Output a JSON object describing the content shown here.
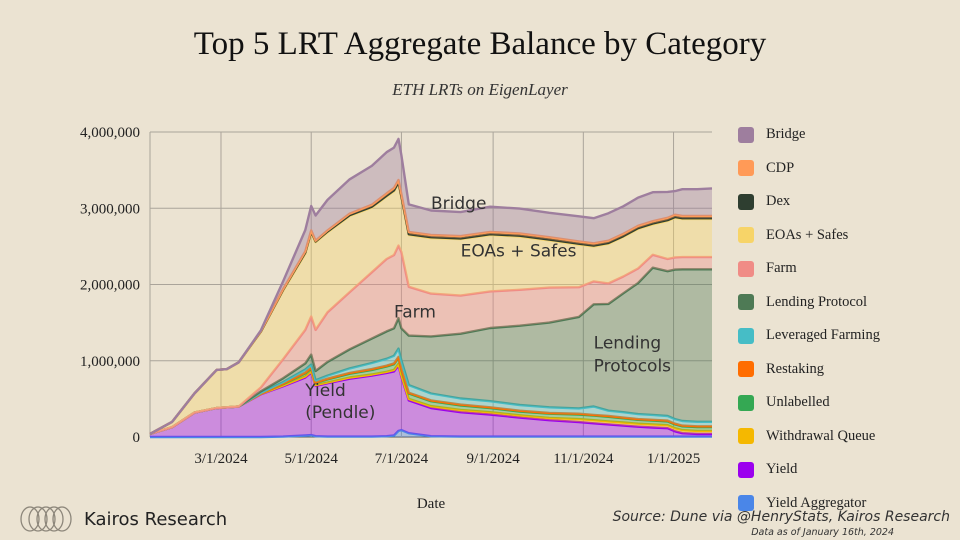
{
  "chart_data": {
    "type": "area",
    "stacked": true,
    "title": "Top 5 LRT Aggregate Balance by Category",
    "subtitle": "ETH LRTs on EigenLayer",
    "xlabel": "Date",
    "ylabel": "",
    "ylim": [
      0,
      4000000
    ],
    "yticks": [
      0,
      1000000,
      2000000,
      3000000,
      4000000
    ],
    "ytick_labels": [
      "0",
      "1,000,000",
      "2,000,000",
      "3,000,000",
      "4,000,000"
    ],
    "xtick_labels": [
      "3/1/2024",
      "5/1/2024",
      "7/1/2024",
      "9/1/2024",
      "11/1/2024",
      "1/1/2025"
    ],
    "xtick_days": [
      48,
      109,
      170,
      232,
      293,
      354
    ],
    "x_days": [
      0,
      15,
      30,
      45,
      52,
      60,
      75,
      90,
      105,
      109,
      112,
      120,
      135,
      150,
      160,
      165,
      168,
      170,
      175,
      190,
      210,
      230,
      250,
      270,
      290,
      300,
      310,
      320,
      330,
      340,
      350,
      355,
      360,
      370,
      380
    ],
    "grid": true,
    "legend_position": "right",
    "series": [
      {
        "name": "Yield Aggregator",
        "color": "#4a86e8",
        "values": [
          0,
          0,
          0,
          0,
          0,
          0,
          0,
          5000,
          20000,
          25000,
          10000,
          5000,
          5000,
          5000,
          10000,
          20000,
          80000,
          90000,
          50000,
          10000,
          5000,
          5000,
          5000,
          5000,
          5000,
          5000,
          5000,
          5000,
          5000,
          5000,
          5000,
          5000,
          5000,
          5000,
          5000
        ]
      },
      {
        "name": "Yield",
        "color": "#9b00ee",
        "values": [
          40000,
          130000,
          320000,
          380000,
          390000,
          400000,
          560000,
          660000,
          760000,
          820000,
          660000,
          700000,
          760000,
          800000,
          830000,
          840000,
          860000,
          700000,
          430000,
          370000,
          320000,
          290000,
          250000,
          215000,
          190000,
          175000,
          160000,
          145000,
          130000,
          120000,
          110000,
          70000,
          45000,
          35000,
          35000
        ]
      },
      {
        "name": "Withdrawal Queue",
        "color": "#f5b800",
        "values": [
          0,
          0,
          0,
          0,
          0,
          0,
          5000,
          10000,
          15000,
          15000,
          10000,
          10000,
          15000,
          15000,
          15000,
          20000,
          20000,
          20000,
          20000,
          25000,
          30000,
          30000,
          30000,
          30000,
          40000,
          40000,
          40000,
          40000,
          40000,
          40000,
          40000,
          40000,
          40000,
          40000,
          40000
        ]
      },
      {
        "name": "Unlabelled",
        "color": "#34a853",
        "values": [
          0,
          0,
          0,
          0,
          0,
          0,
          5000,
          20000,
          40000,
          40000,
          30000,
          40000,
          50000,
          60000,
          70000,
          75000,
          80000,
          75000,
          70000,
          65000,
          60000,
          55000,
          50000,
          55000,
          60000,
          60000,
          60000,
          55000,
          50000,
          50000,
          50000,
          50000,
          50000,
          50000,
          50000
        ]
      },
      {
        "name": "Restaking",
        "color": "#ff6d00",
        "values": [
          0,
          0,
          0,
          0,
          0,
          0,
          0,
          5000,
          10000,
          10000,
          5000,
          10000,
          10000,
          10000,
          10000,
          10000,
          10000,
          10000,
          10000,
          10000,
          10000,
          10000,
          10000,
          10000,
          10000,
          10000,
          10000,
          10000,
          10000,
          10000,
          10000,
          10000,
          10000,
          10000,
          10000
        ]
      },
      {
        "name": "Leveraged Farming",
        "color": "#46bdc6",
        "values": [
          0,
          0,
          0,
          0,
          0,
          0,
          10000,
          20000,
          40000,
          40000,
          30000,
          40000,
          60000,
          80000,
          90000,
          100000,
          110000,
          110000,
          100000,
          90000,
          80000,
          80000,
          75000,
          75000,
          70000,
          110000,
          70000,
          70000,
          65000,
          65000,
          60000,
          60000,
          60000,
          60000,
          60000
        ]
      },
      {
        "name": "Lending Protocol",
        "color": "#4e7a55",
        "values": [
          0,
          0,
          0,
          0,
          0,
          0,
          20000,
          50000,
          80000,
          130000,
          120000,
          180000,
          250000,
          320000,
          360000,
          360000,
          400000,
          420000,
          650000,
          750000,
          850000,
          960000,
          1040000,
          1110000,
          1200000,
          1340000,
          1400000,
          1560000,
          1720000,
          1930000,
          1900000,
          1960000,
          1990000,
          2000000,
          2000000
        ]
      },
      {
        "name": "Farm",
        "color": "#f08c86",
        "values": [
          0,
          0,
          0,
          0,
          0,
          0,
          50000,
          250000,
          440000,
          500000,
          540000,
          650000,
          750000,
          870000,
          950000,
          960000,
          950000,
          1000000,
          640000,
          560000,
          500000,
          480000,
          470000,
          460000,
          390000,
          300000,
          270000,
          220000,
          190000,
          170000,
          160000,
          160000,
          160000,
          160000,
          160000
        ]
      },
      {
        "name": "EOAs + Safes",
        "color": "#f7d468",
        "values": [
          0,
          70000,
          250000,
          500000,
          500000,
          580000,
          730000,
          900000,
          1000000,
          1100000,
          1150000,
          1050000,
          1000000,
          850000,
          820000,
          840000,
          820000,
          720000,
          680000,
          730000,
          740000,
          740000,
          700000,
          620000,
          560000,
          460000,
          520000,
          520000,
          520000,
          400000,
          500000,
          520000,
          500000,
          500000,
          500000
        ]
      },
      {
        "name": "Dex",
        "color": "#2e3e30",
        "values": [
          0,
          0,
          0,
          0,
          0,
          0,
          5000,
          10000,
          15000,
          15000,
          10000,
          10000,
          10000,
          10000,
          10000,
          10000,
          10000,
          10000,
          10000,
          10000,
          10000,
          10000,
          10000,
          10000,
          10000,
          10000,
          10000,
          10000,
          10000,
          10000,
          10000,
          10000,
          10000,
          10000,
          10000
        ]
      },
      {
        "name": "CDP",
        "color": "#ff9a57",
        "values": [
          0,
          0,
          0,
          0,
          0,
          0,
          5000,
          10000,
          15000,
          15000,
          10000,
          15000,
          20000,
          25000,
          30000,
          30000,
          30000,
          30000,
          30000,
          30000,
          30000,
          30000,
          30000,
          30000,
          30000,
          30000,
          30000,
          30000,
          30000,
          30000,
          30000,
          30000,
          30000,
          30000,
          30000
        ]
      },
      {
        "name": "Bridge",
        "color": "#9e7e9e",
        "values": [
          0,
          0,
          0,
          0,
          0,
          0,
          10000,
          100000,
          280000,
          320000,
          330000,
          400000,
          450000,
          510000,
          540000,
          530000,
          540000,
          510000,
          360000,
          320000,
          315000,
          330000,
          325000,
          320000,
          330000,
          330000,
          360000,
          360000,
          370000,
          380000,
          340000,
          310000,
          350000,
          350000,
          360000
        ]
      }
    ],
    "annotations": [
      {
        "text": "Bridge"
      },
      {
        "text": "EOAs + Safes"
      },
      {
        "text": "Farm"
      },
      {
        "text": "Lending"
      },
      {
        "text": "Protocols"
      },
      {
        "text": "Yield"
      },
      {
        "text": "(Pendle)"
      }
    ]
  },
  "branding": {
    "name": "Kairos Research",
    "source": "Source: Dune via @HenryStats, Kairos Research",
    "as_of": "Data as of January 16th, 2024"
  }
}
